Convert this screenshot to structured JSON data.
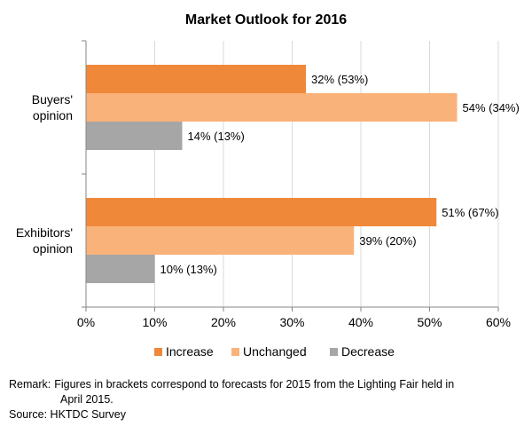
{
  "chart_data": {
    "type": "bar",
    "orientation": "horizontal",
    "title": "Market Outlook for 2016",
    "categories": [
      "Buyers' opinion",
      "Exhibitors' opinion"
    ],
    "category_lines": [
      [
        "Buyers'",
        "opinion"
      ],
      [
        "Exhibitors'",
        "opinion"
      ]
    ],
    "series": [
      {
        "name": "Increase",
        "values": [
          32,
          51
        ],
        "labels": [
          "32% (53%)",
          "51% (67%)"
        ],
        "color": "#F0883A"
      },
      {
        "name": "Unchanged",
        "values": [
          54,
          39
        ],
        "labels": [
          "54% (34%)",
          "39% (20%)"
        ],
        "color": "#F9B27A"
      },
      {
        "name": "Decrease",
        "values": [
          14,
          10
        ],
        "labels": [
          "14% (13%)",
          "10% (13%)"
        ],
        "color": "#A6A6A6"
      }
    ],
    "xlim": [
      0,
      60
    ],
    "xticks": [
      0,
      10,
      20,
      30,
      40,
      50,
      60
    ],
    "xtick_labels": [
      "0%",
      "10%",
      "20%",
      "30%",
      "40%",
      "50%",
      "60%"
    ],
    "grid": true,
    "legend_position": "bottom"
  },
  "footer": {
    "remark_label": "Remark:",
    "remark_line1": "Figures in brackets correspond to forecasts for 2015 from the Lighting Fair held in",
    "remark_line2": "April 2015.",
    "source": "Source: HKTDC Survey"
  }
}
